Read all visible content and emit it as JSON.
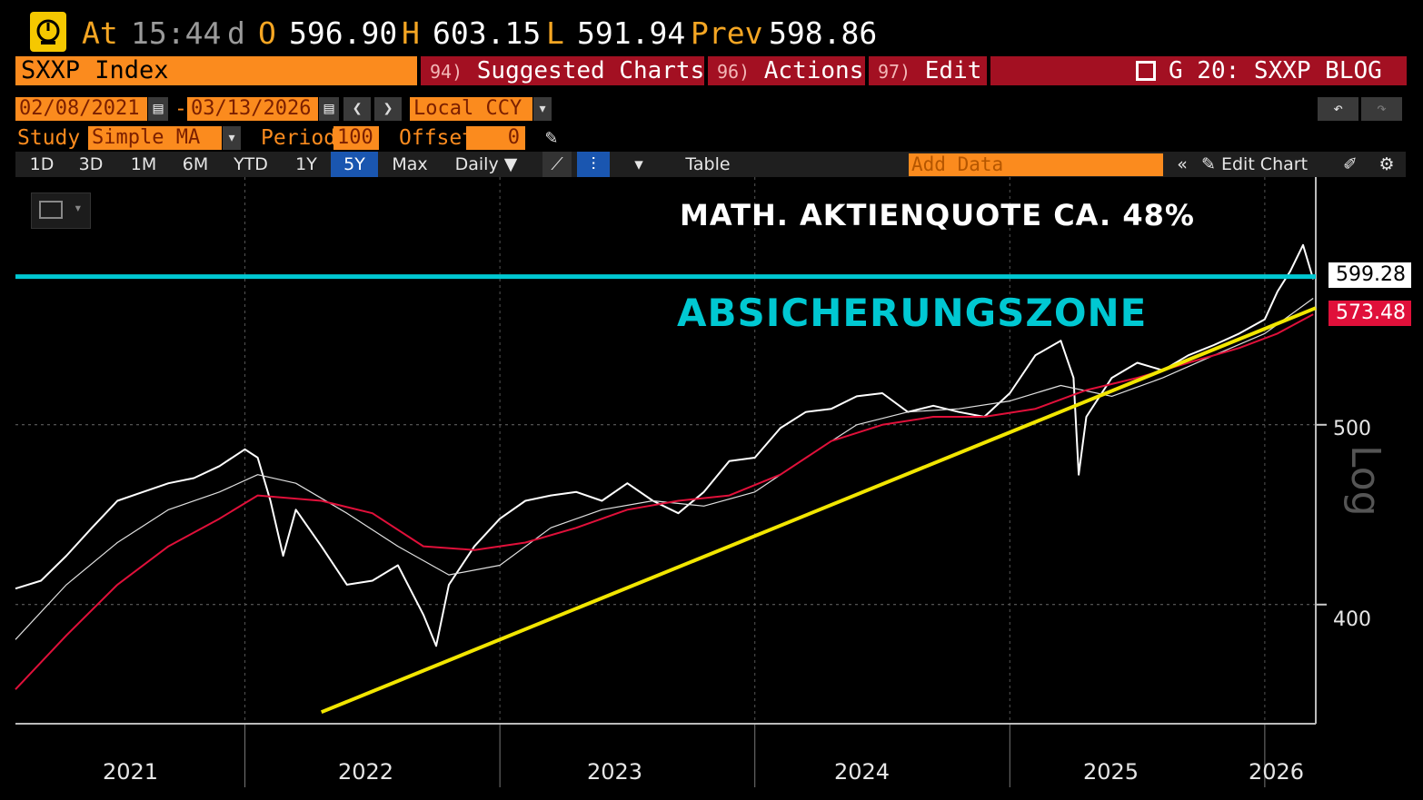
{
  "quote": {
    "at_label": "At",
    "time": "15:44",
    "d_label": "d",
    "o_label": "O",
    "open": "596.90",
    "h_label": "H",
    "high": "603.15",
    "l_label": "L",
    "low": "591.94",
    "prev_label": "Prev",
    "prev": "598.86"
  },
  "menu": {
    "ticker": "SXXP Index",
    "suggested": {
      "num": "94)",
      "label": "Suggested Charts ▾"
    },
    "actions": {
      "num": "96)",
      "label": "Actions ▾"
    },
    "edit": {
      "num": "97)",
      "label": "Edit ▾"
    },
    "blog": "G 20: SXXP BLOG"
  },
  "controls": {
    "start_date": "02/08/2021",
    "dash": "-",
    "end_date": "03/13/2026",
    "currency": "Local CCY",
    "study_label": "Study",
    "study_value": "Simple MA",
    "period_label": "Period",
    "period_value": "100",
    "offset_label": "Offset",
    "offset_value": "0"
  },
  "range_buttons": [
    "1D",
    "3D",
    "1M",
    "6M",
    "YTD",
    "1Y",
    "5Y",
    "Max"
  ],
  "selected_range": "5Y",
  "frequency": "Daily ▼",
  "table_label": "Table",
  "add_data_placeholder": "Add Data",
  "edit_chart_label": "Edit Chart",
  "annotations": {
    "top": "MATH. AKTIENQUOTE CA. 48%",
    "zone": "ABSICHERUNGSZONE"
  },
  "price_tags": {
    "last": "599.28",
    "ma": "573.48"
  },
  "scale_label": "Log",
  "colors": {
    "accent_orange": "#fb8b1e",
    "menu_red": "#a31022",
    "zone_cyan": "#00c8d2",
    "trend_yellow": "#f2e600",
    "ma_red": "#e0103a"
  },
  "chart_data": {
    "type": "line",
    "x_label_years": [
      "2021",
      "2022",
      "2023",
      "2024",
      "2025",
      "2026"
    ],
    "y_ticks": [
      400,
      500
    ],
    "y_scale": "log",
    "ylim": [
      345,
      680
    ],
    "x_range": [
      2021.1,
      2026.2
    ],
    "series": [
      {
        "name": "SXXP Index",
        "role": "price",
        "color": "#ffffff",
        "x": [
          2021.1,
          2021.2,
          2021.3,
          2021.4,
          2021.5,
          2021.6,
          2021.7,
          2021.8,
          2021.9,
          2022.0,
          2022.05,
          2022.1,
          2022.15,
          2022.2,
          2022.3,
          2022.4,
          2022.5,
          2022.6,
          2022.7,
          2022.75,
          2022.8,
          2022.9,
          2023.0,
          2023.1,
          2023.2,
          2023.3,
          2023.4,
          2023.5,
          2023.6,
          2023.7,
          2023.8,
          2023.9,
          2024.0,
          2024.1,
          2024.2,
          2024.3,
          2024.4,
          2024.5,
          2024.6,
          2024.7,
          2024.8,
          2024.9,
          2025.0,
          2025.1,
          2025.2,
          2025.25,
          2025.27,
          2025.3,
          2025.4,
          2025.5,
          2025.6,
          2025.7,
          2025.8,
          2025.9,
          2026.0,
          2026.05,
          2026.1,
          2026.15,
          2026.19
        ],
        "values": [
          408,
          412,
          425,
          440,
          455,
          460,
          465,
          468,
          475,
          485,
          480,
          455,
          425,
          450,
          430,
          410,
          412,
          420,
          395,
          380,
          410,
          430,
          445,
          455,
          458,
          460,
          455,
          465,
          455,
          448,
          460,
          478,
          480,
          498,
          508,
          510,
          518,
          520,
          508,
          512,
          508,
          505,
          520,
          545,
          555,
          530,
          470,
          505,
          530,
          540,
          535,
          545,
          552,
          560,
          570,
          590,
          605,
          625,
          599
        ]
      },
      {
        "name": "100D MA (thin)",
        "role": "ma",
        "color": "#e0e0e0",
        "x": [
          2021.1,
          2021.3,
          2021.5,
          2021.7,
          2021.9,
          2022.05,
          2022.2,
          2022.4,
          2022.6,
          2022.8,
          2023.0,
          2023.2,
          2023.4,
          2023.6,
          2023.8,
          2024.0,
          2024.2,
          2024.4,
          2024.6,
          2024.8,
          2025.0,
          2025.2,
          2025.4,
          2025.6,
          2025.8,
          2026.0,
          2026.19
        ],
        "values": [
          383,
          410,
          432,
          450,
          460,
          470,
          465,
          448,
          430,
          415,
          420,
          440,
          450,
          455,
          452,
          460,
          480,
          500,
          508,
          510,
          515,
          525,
          518,
          530,
          545,
          560,
          585
        ]
      },
      {
        "name": "Simple MA 100",
        "role": "ma",
        "color": "#e0103a",
        "x": [
          2021.1,
          2021.3,
          2021.5,
          2021.7,
          2021.9,
          2022.05,
          2022.3,
          2022.5,
          2022.7,
          2022.9,
          2023.1,
          2023.3,
          2023.5,
          2023.7,
          2023.9,
          2024.1,
          2024.3,
          2024.5,
          2024.7,
          2024.9,
          2025.1,
          2025.3,
          2025.5,
          2025.7,
          2025.9,
          2026.05,
          2026.19
        ],
        "values": [
          360,
          385,
          410,
          430,
          445,
          458,
          455,
          448,
          430,
          428,
          432,
          440,
          450,
          455,
          458,
          470,
          490,
          500,
          505,
          505,
          510,
          522,
          530,
          540,
          550,
          560,
          573.48
        ]
      },
      {
        "name": "Trendline",
        "role": "trend",
        "color": "#f2e600",
        "x": [
          2022.3,
          2026.2
        ],
        "values": [
          350,
          578
        ]
      },
      {
        "name": "Hedge zone",
        "role": "level",
        "color": "#00c8d2",
        "x": [
          2021.1,
          2026.2
        ],
        "values": [
          601,
          601
        ]
      }
    ]
  }
}
